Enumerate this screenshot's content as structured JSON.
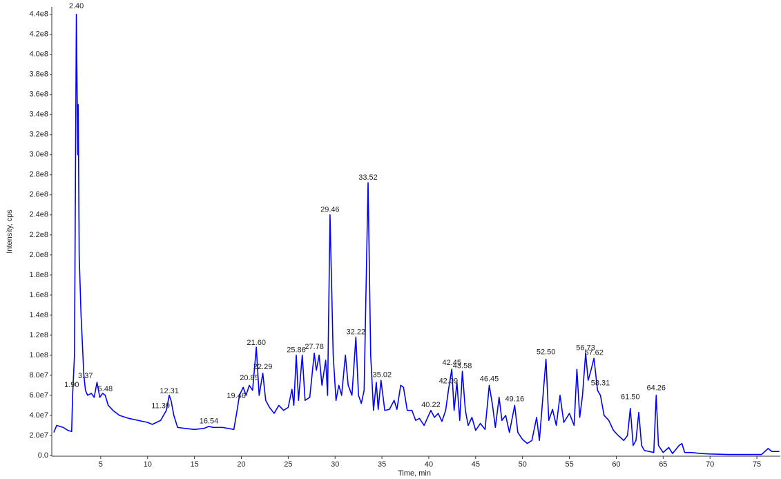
{
  "chart_data": {
    "type": "line",
    "x_label": "Time, min",
    "y_label": "Intensity, cps",
    "xlim": [
      0,
      77.5
    ],
    "ylim": [
      0,
      446000000
    ],
    "xticks": [
      5,
      10,
      15,
      20,
      25,
      30,
      35,
      40,
      45,
      50,
      55,
      60,
      65,
      70,
      75
    ],
    "yticks": [
      {
        "value": 0,
        "label": "0.0"
      },
      {
        "value": 20000000.0,
        "label": "2.0e7"
      },
      {
        "value": 40000000.0,
        "label": "4.0e7"
      },
      {
        "value": 60000000.0,
        "label": "6.0e7"
      },
      {
        "value": 80000000.0,
        "label": "8.0e7"
      },
      {
        "value": 100000000.0,
        "label": "1.0e8"
      },
      {
        "value": 120000000.0,
        "label": "1.2e8"
      },
      {
        "value": 140000000.0,
        "label": "1.4e8"
      },
      {
        "value": 160000000.0,
        "label": "1.6e8"
      },
      {
        "value": 180000000.0,
        "label": "1.8e8"
      },
      {
        "value": 200000000.0,
        "label": "2.0e8"
      },
      {
        "value": 220000000.0,
        "label": "2.2e8"
      },
      {
        "value": 240000000.0,
        "label": "2.4e8"
      },
      {
        "value": 260000000.0,
        "label": "2.6e8"
      },
      {
        "value": 280000000.0,
        "label": "2.8e8"
      },
      {
        "value": 300000000.0,
        "label": "3.0e8"
      },
      {
        "value": 320000000.0,
        "label": "3.2e8"
      },
      {
        "value": 340000000.0,
        "label": "3.4e8"
      },
      {
        "value": 360000000.0,
        "label": "3.6e8"
      },
      {
        "value": 380000000.0,
        "label": "3.8e8"
      },
      {
        "value": 400000000.0,
        "label": "4.0e8"
      },
      {
        "value": 420000000.0,
        "label": "4.2e8"
      },
      {
        "value": 440000000.0,
        "label": "4.4e8"
      }
    ],
    "series": [
      {
        "color": "#0000ff",
        "x": [
          0,
          0.3,
          1.0,
          1.5,
          1.9,
          2.0,
          2.2,
          2.4,
          2.55,
          2.6,
          2.7,
          2.9,
          3.0,
          3.2,
          3.37,
          3.6,
          4.0,
          4.3,
          4.6,
          4.9,
          5.2,
          5.48,
          5.8,
          6.3,
          7,
          8,
          9,
          10,
          10.5,
          11.39,
          12,
          12.31,
          12.5,
          12.8,
          13.2,
          14,
          15,
          16,
          16.54,
          17,
          18,
          19.2,
          19.46,
          19.8,
          20.2,
          20.5,
          20.85,
          21.2,
          21.6,
          21.9,
          22.29,
          22.6,
          23,
          23.5,
          24,
          24.5,
          25,
          25.4,
          25.6,
          25.86,
          26.1,
          26.5,
          26.8,
          27.3,
          27.78,
          28,
          28.3,
          28.6,
          29,
          29.2,
          29.46,
          29.8,
          30.1,
          30.4,
          30.7,
          31.1,
          31.4,
          31.8,
          32.22,
          32.5,
          32.8,
          33.1,
          33.52,
          33.8,
          34.1,
          34.4,
          34.6,
          34.9,
          35.3,
          35.8,
          36.3,
          36.6,
          37,
          37.3,
          37.7,
          38.2,
          38.6,
          39,
          39.5,
          40.22,
          40.6,
          41,
          41.4,
          41.8,
          42.09,
          42.45,
          42.7,
          43,
          43.3,
          43.58,
          43.9,
          44.2,
          44.6,
          45,
          45.5,
          46,
          46.45,
          46.8,
          47.1,
          47.5,
          47.8,
          48.2,
          48.6,
          49.16,
          49.5,
          50,
          50.5,
          51,
          51.5,
          51.8,
          52.1,
          52.5,
          52.8,
          53.2,
          53.6,
          54,
          54.4,
          55,
          55.5,
          55.8,
          56.1,
          56.4,
          56.73,
          57,
          57.3,
          57.62,
          58,
          58.31,
          58.7,
          59.2,
          59.7,
          60.2,
          60.8,
          61.2,
          61.5,
          61.8,
          62.1,
          62.4,
          62.7,
          63,
          63.5,
          64.0,
          64.26,
          64.5,
          65,
          65.6,
          66,
          66.7,
          67,
          67.3,
          68,
          69,
          70,
          72,
          74,
          75.5,
          76.2,
          76.6,
          77.4
        ],
        "values": [
          23000000.0,
          30000000.0,
          28000000.0,
          25000000.0,
          24000000.0,
          60000000.0,
          100000000.0,
          440000000.0,
          300000000.0,
          350000000.0,
          200000000.0,
          140000000.0,
          120000000.0,
          80000000.0,
          65000000.0,
          60000000.0,
          62000000.0,
          58000000.0,
          73000000.0,
          58000000.0,
          62000000.0,
          60000000.0,
          50000000.0,
          45000000.0,
          40000000.0,
          37000000.0,
          35000000.0,
          33000000.0,
          31000000.0,
          35000000.0,
          45000000.0,
          60000000.0,
          55000000.0,
          40000000.0,
          28000000.0,
          27000000.0,
          26000000.0,
          27000000.0,
          29000000.0,
          28000000.0,
          28000000.0,
          26000000.0,
          40000000.0,
          60000000.0,
          68000000.0,
          60000000.0,
          70000000.0,
          65000000.0,
          108000000.0,
          60000000.0,
          82000000.0,
          55000000.0,
          48000000.0,
          42000000.0,
          50000000.0,
          45000000.0,
          48000000.0,
          66000000.0,
          50000000.0,
          100000000.0,
          55000000.0,
          100000000.0,
          55000000.0,
          58000000.0,
          102000000.0,
          85000000.0,
          100000000.0,
          70000000.0,
          95000000.0,
          60000000.0,
          240000000.0,
          100000000.0,
          55000000.0,
          70000000.0,
          60000000.0,
          100000000.0,
          70000000.0,
          60000000.0,
          118000000.0,
          60000000.0,
          52000000.0,
          65000000.0,
          272000000.0,
          100000000.0,
          45000000.0,
          73000000.0,
          46000000.0,
          75000000.0,
          45000000.0,
          46000000.0,
          55000000.0,
          46000000.0,
          70000000.0,
          68000000.0,
          45000000.0,
          45000000.0,
          35000000.0,
          37000000.0,
          30000000.0,
          45000000.0,
          38000000.0,
          42000000.0,
          34000000.0,
          45000000.0,
          65000000.0,
          86000000.0,
          45000000.0,
          73000000.0,
          35000000.0,
          84000000.0,
          45000000.0,
          30000000.0,
          38000000.0,
          25000000.0,
          32000000.0,
          26000000.0,
          70000000.0,
          50000000.0,
          28000000.0,
          58000000.0,
          35000000.0,
          40000000.0,
          23000000.0,
          50000000.0,
          23000000.0,
          16000000.0,
          12000000.0,
          15000000.0,
          38000000.0,
          15000000.0,
          50000000.0,
          96000000.0,
          35000000.0,
          46000000.0,
          30000000.0,
          60000000.0,
          33000000.0,
          42000000.0,
          30000000.0,
          86000000.0,
          38000000.0,
          60000000.0,
          102000000.0,
          75000000.0,
          85000000.0,
          97000000.0,
          65000000.0,
          60000000.0,
          40000000.0,
          35000000.0,
          25000000.0,
          20000000.0,
          15000000.0,
          20000000.0,
          47000000.0,
          10000000.0,
          15000000.0,
          43000000.0,
          10000000.0,
          5000000.0,
          4000000.0,
          3000000.0,
          60000000.0,
          10000000.0,
          3000000.0,
          8000000.0,
          2000000.0,
          10000000.0,
          12000000.0,
          3000000.0,
          3000000.0,
          2000000.0,
          1500000.0,
          1000000.0,
          1000000.0,
          1000000.0,
          7000000.0,
          4000000.0,
          4000000.0
        ]
      }
    ],
    "peak_labels": [
      {
        "x": 1.9,
        "y": 66000000.0,
        "label": "1.90"
      },
      {
        "x": 2.4,
        "y": 444000000.0,
        "label": "2.40"
      },
      {
        "x": 3.37,
        "y": 75000000.0,
        "label": "3.37"
      },
      {
        "x": 5.48,
        "y": 62000000.0,
        "label": "5.48"
      },
      {
        "x": 11.39,
        "y": 45000000.0,
        "label": "11.39"
      },
      {
        "x": 12.31,
        "y": 60000000.0,
        "label": "12.31"
      },
      {
        "x": 16.54,
        "y": 30000000.0,
        "label": "16.54"
      },
      {
        "x": 19.46,
        "y": 55000000.0,
        "label": "19.46"
      },
      {
        "x": 20.85,
        "y": 73000000.0,
        "label": "20.85"
      },
      {
        "x": 21.6,
        "y": 108000000.0,
        "label": "21.60"
      },
      {
        "x": 22.29,
        "y": 84000000.0,
        "label": "22.29"
      },
      {
        "x": 25.86,
        "y": 101000000.0,
        "label": "25.86"
      },
      {
        "x": 27.78,
        "y": 104000000.0,
        "label": "27.78"
      },
      {
        "x": 29.46,
        "y": 241000000.0,
        "label": "29.46"
      },
      {
        "x": 32.22,
        "y": 119000000.0,
        "label": "32.22"
      },
      {
        "x": 33.52,
        "y": 273000000.0,
        "label": "33.52"
      },
      {
        "x": 35.02,
        "y": 76000000.0,
        "label": "35.02"
      },
      {
        "x": 40.22,
        "y": 46000000.0,
        "label": "40.22"
      },
      {
        "x": 42.09,
        "y": 70000000.0,
        "label": "42.09"
      },
      {
        "x": 42.45,
        "y": 88000000.0,
        "label": "42.45"
      },
      {
        "x": 43.58,
        "y": 85000000.0,
        "label": "43.58"
      },
      {
        "x": 46.45,
        "y": 72000000.0,
        "label": "46.45"
      },
      {
        "x": 49.16,
        "y": 52000000.0,
        "label": "49.16"
      },
      {
        "x": 52.5,
        "y": 99000000.0,
        "label": "52.50"
      },
      {
        "x": 56.73,
        "y": 103000000.0,
        "label": "56.73"
      },
      {
        "x": 57.62,
        "y": 98000000.0,
        "label": "57.62"
      },
      {
        "x": 58.31,
        "y": 68000000.0,
        "label": "58.31"
      },
      {
        "x": 61.5,
        "y": 54000000.0,
        "label": "61.50"
      },
      {
        "x": 64.26,
        "y": 63000000.0,
        "label": "64.26"
      }
    ]
  }
}
